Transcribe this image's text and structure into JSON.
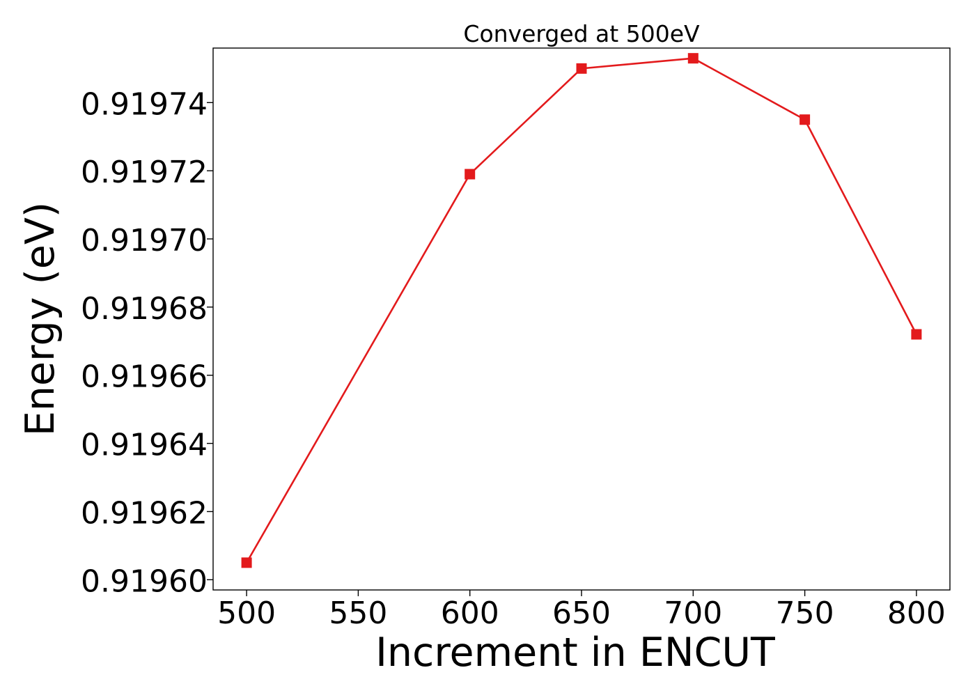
{
  "chart_data": {
    "type": "line",
    "title": "Converged at 500eV",
    "xlabel": "Increment in ENCUT",
    "ylabel": "Energy (eV)",
    "x": [
      500,
      600,
      650,
      700,
      750,
      800
    ],
    "series": [
      {
        "values": [
          0.919605,
          0.919719,
          0.91975,
          0.919753,
          0.919735,
          0.919672
        ]
      }
    ],
    "xlim": [
      485,
      815
    ],
    "ylim": [
      0.919597,
      0.919756
    ],
    "xticks": [
      500,
      550,
      600,
      650,
      700,
      750,
      800
    ],
    "yticks": [
      0.9196,
      0.91962,
      0.91964,
      0.91966,
      0.91968,
      0.9197,
      0.91972,
      0.91974
    ],
    "xtick_labels": [
      "500",
      "550",
      "600",
      "650",
      "700",
      "750",
      "800"
    ],
    "ytick_labels": [
      "0.91960",
      "0.91962",
      "0.91964",
      "0.91966",
      "0.91968",
      "0.91970",
      "0.91972",
      "0.91974"
    ],
    "grid": false,
    "legend": false,
    "marker": "square",
    "colors": {
      "line": "#e31a1c",
      "axes": "#000000",
      "background": "#ffffff"
    }
  }
}
